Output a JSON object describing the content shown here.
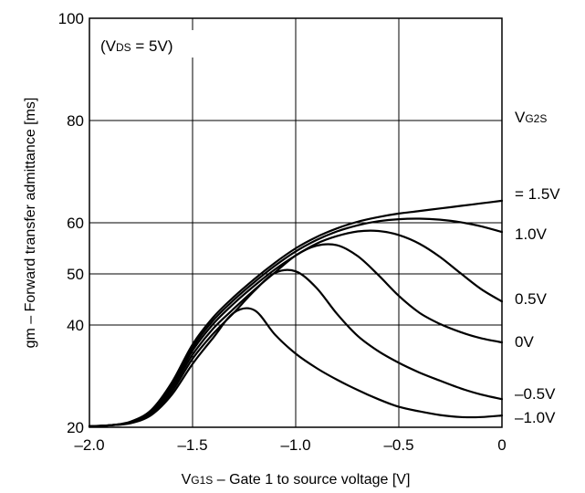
{
  "chart_data": {
    "type": "line",
    "title": "",
    "annotation": {
      "open": "(V",
      "sub": "DS",
      "rest": " = 5V)"
    },
    "xlabel": {
      "main": "V",
      "sub": "G1S",
      "rest": " – Gate 1 to source voltage [V]"
    },
    "ylabel": "gm – Forward transfer admittance [ms]",
    "xlim": [
      -2.0,
      0
    ],
    "ylim": [
      20,
      100
    ],
    "xticks": [
      -2.0,
      -1.5,
      -1.0,
      -0.5,
      0
    ],
    "xtick_labels": [
      "–2.0",
      "–1.5",
      "–1.0",
      "–0.5",
      "0"
    ],
    "yticks": [
      20,
      40,
      50,
      60,
      80,
      100
    ],
    "ytick_labels": [
      "20",
      "40",
      "50",
      "60",
      "80",
      "100"
    ],
    "grid_y": [
      40,
      50,
      60,
      80,
      100
    ],
    "grid_x": [
      -1.5,
      -1.0,
      -0.5
    ],
    "series_header": {
      "main": "V",
      "sub": "G2S"
    },
    "series": [
      {
        "name": "= 1.5V",
        "x": [
          -2.0,
          -1.9,
          -1.8,
          -1.7,
          -1.6,
          -1.5,
          -1.4,
          -1.3,
          -1.2,
          -1.1,
          -1.0,
          -0.9,
          -0.8,
          -0.7,
          -0.6,
          -0.5,
          -0.4,
          -0.3,
          -0.2,
          -0.1,
          0.0
        ],
        "values": [
          20.2,
          20.4,
          21.1,
          23.4,
          28.8,
          36.2,
          41.5,
          45.5,
          49.0,
          52.2,
          55.0,
          57.2,
          58.9,
          60.2,
          61.1,
          61.8,
          62.3,
          62.8,
          63.3,
          63.8,
          64.3
        ]
      },
      {
        "name": "1.0V",
        "x": [
          -2.0,
          -1.9,
          -1.8,
          -1.7,
          -1.6,
          -1.5,
          -1.4,
          -1.3,
          -1.2,
          -1.1,
          -1.0,
          -0.9,
          -0.8,
          -0.7,
          -0.6,
          -0.5,
          -0.4,
          -0.3,
          -0.2,
          -0.1,
          0.0
        ],
        "values": [
          20.2,
          20.4,
          21.0,
          23.3,
          28.4,
          35.6,
          40.9,
          44.9,
          48.4,
          51.6,
          54.4,
          56.6,
          58.3,
          59.5,
          60.3,
          60.7,
          60.8,
          60.6,
          60.1,
          59.3,
          58.2
        ]
      },
      {
        "name": "0.5V",
        "x": [
          -2.0,
          -1.9,
          -1.8,
          -1.7,
          -1.6,
          -1.5,
          -1.4,
          -1.3,
          -1.2,
          -1.1,
          -1.0,
          -0.9,
          -0.8,
          -0.7,
          -0.6,
          -0.5,
          -0.4,
          -0.3,
          -0.2,
          -0.1,
          0.0
        ],
        "values": [
          20.2,
          20.4,
          21.0,
          23.1,
          28.0,
          35.0,
          40.2,
          44.2,
          47.7,
          50.9,
          53.6,
          55.9,
          57.4,
          58.3,
          58.4,
          57.6,
          55.9,
          53.3,
          50.1,
          47.0,
          44.6
        ]
      },
      {
        "name": "0V",
        "x": [
          -2.0,
          -1.9,
          -1.8,
          -1.7,
          -1.6,
          -1.5,
          -1.4,
          -1.3,
          -1.2,
          -1.1,
          -1.0,
          -0.9,
          -0.8,
          -0.7,
          -0.6,
          -0.5,
          -0.4,
          -0.3,
          -0.2,
          -0.1,
          0.0
        ],
        "values": [
          20.2,
          20.4,
          20.9,
          22.9,
          27.6,
          34.2,
          39.3,
          43.2,
          46.9,
          50.3,
          53.6,
          55.5,
          55.6,
          53.5,
          49.8,
          45.7,
          42.4,
          40.2,
          38.6,
          37.4,
          36.6
        ]
      },
      {
        "name": "–0.5V",
        "x": [
          -2.0,
          -1.9,
          -1.8,
          -1.7,
          -1.6,
          -1.5,
          -1.4,
          -1.3,
          -1.2,
          -1.1,
          -1.0,
          -0.9,
          -0.8,
          -0.7,
          -0.6,
          -0.5,
          -0.4,
          -0.3,
          -0.2,
          -0.1,
          0.0
        ],
        "values": [
          20.2,
          20.4,
          20.9,
          22.7,
          27.0,
          33.4,
          38.3,
          42.4,
          46.7,
          50.2,
          50.5,
          47.3,
          42.2,
          37.9,
          34.9,
          32.6,
          30.7,
          29.1,
          27.6,
          26.4,
          25.5
        ]
      },
      {
        "name": "–1.0V",
        "x": [
          -2.0,
          -1.9,
          -1.8,
          -1.7,
          -1.6,
          -1.5,
          -1.4,
          -1.3,
          -1.2,
          -1.1,
          -1.0,
          -0.9,
          -0.8,
          -0.7,
          -0.6,
          -0.5,
          -0.4,
          -0.3,
          -0.2,
          -0.1,
          0.0
        ],
        "values": [
          20.2,
          20.4,
          20.8,
          22.4,
          26.4,
          32.4,
          37.5,
          42.4,
          42.9,
          38.1,
          34.4,
          31.6,
          29.3,
          27.3,
          25.5,
          24.0,
          23.1,
          22.4,
          22.0,
          22.0,
          22.3
        ]
      }
    ]
  }
}
